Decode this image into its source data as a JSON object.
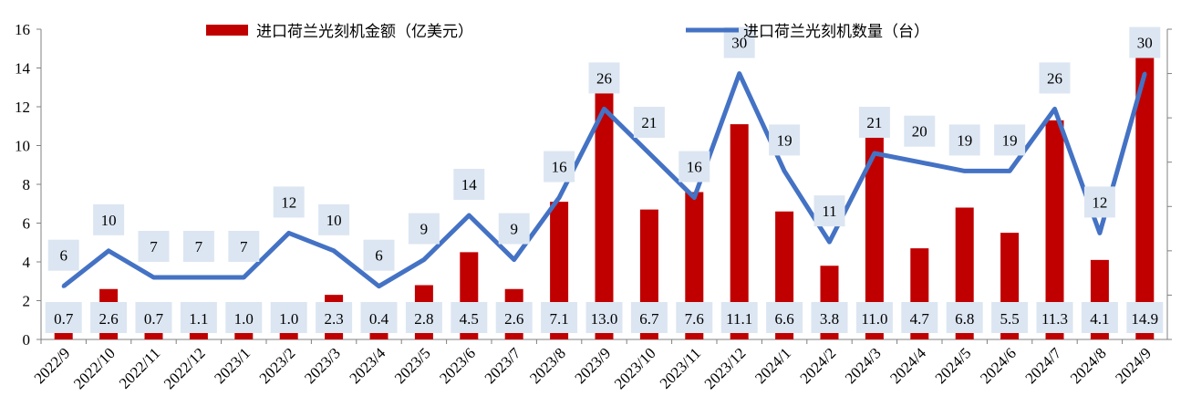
{
  "chart_data": {
    "type": "bar+line",
    "categories": [
      "2022/9",
      "2022/10",
      "2022/11",
      "2022/12",
      "2023/1",
      "2023/2",
      "2023/3",
      "2023/4",
      "2023/5",
      "2023/6",
      "2023/7",
      "2023/8",
      "2023/9",
      "2023/10",
      "2023/11",
      "2023/12",
      "2024/1",
      "2024/2",
      "2024/3",
      "2024/4",
      "2024/5",
      "2024/6",
      "2024/7",
      "2024/8",
      "2024/9"
    ],
    "series": [
      {
        "name": "进口荷兰光刻机金额（亿美元）",
        "type": "bar",
        "axis": "left",
        "color": "#c00000",
        "values": [
          0.7,
          2.6,
          0.7,
          1.1,
          1.0,
          1.0,
          2.3,
          0.4,
          2.8,
          4.5,
          2.6,
          7.1,
          13.0,
          6.7,
          7.6,
          11.1,
          6.6,
          3.8,
          11.0,
          4.7,
          6.8,
          5.5,
          11.3,
          4.1,
          14.9
        ],
        "labels": [
          "0.7",
          "2.6",
          "0.7",
          "1.1",
          "1.0",
          "1.0",
          "2.3",
          "0.4",
          "2.8",
          "4.5",
          "2.6",
          "7.1",
          "13.0",
          "6.7",
          "7.6",
          "11.1",
          "6.6",
          "3.8",
          "11.0",
          "4.7",
          "6.8",
          "5.5",
          "11.3",
          "4.1",
          "14.9"
        ]
      },
      {
        "name": "进口荷兰光刻机数量（台）",
        "type": "line",
        "axis": "right",
        "color": "#4472c4",
        "values": [
          6,
          10,
          7,
          7,
          7,
          12,
          10,
          6,
          9,
          14,
          9,
          16,
          26,
          21,
          16,
          30,
          19,
          11,
          21,
          20,
          19,
          19,
          26,
          12,
          30
        ],
        "labels": [
          "6",
          "10",
          "7",
          "7",
          "7",
          "12",
          "10",
          "6",
          "9",
          "14",
          "9",
          "16",
          "26",
          "21",
          "16",
          "30",
          "19",
          "11",
          "21",
          "20",
          "19",
          "19",
          "26",
          "12",
          "30"
        ]
      }
    ],
    "y_left": {
      "min": 0,
      "max": 16,
      "step": 2,
      "ticks": [
        "0",
        "2",
        "4",
        "6",
        "8",
        "10",
        "12",
        "14",
        "16"
      ]
    },
    "y_right": {
      "min": 0,
      "max": 35,
      "step": 5
    },
    "grid": false,
    "legend": "top",
    "label_box_color": "#dce6f2"
  }
}
